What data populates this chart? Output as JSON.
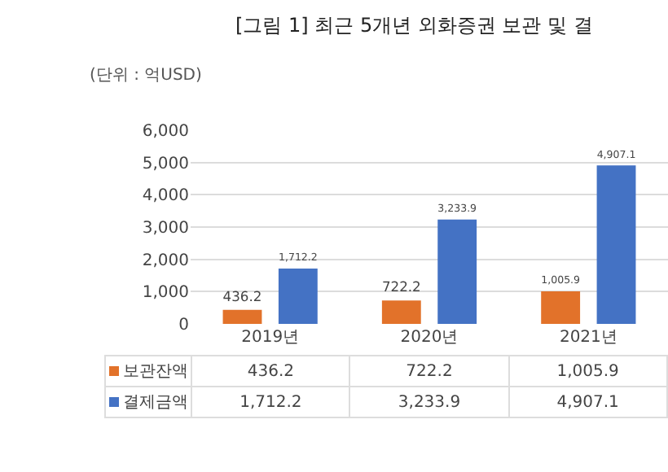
{
  "chart_data": {
    "type": "bar",
    "title": "[그림 1] 최근 5개년 외화증권 보관 및 결",
    "ylabel": "(단위 : 억USD)",
    "categories": [
      "2019년",
      "2020년",
      "2021년"
    ],
    "series": [
      {
        "name": "보관잔액",
        "color": "#e2722a",
        "values": [
          436.2,
          722.2,
          1005.9
        ],
        "value_labels": [
          "436.2",
          "722.2",
          "1,005.9"
        ]
      },
      {
        "name": "결제금액",
        "color": "#4472c4",
        "values": [
          1712.2,
          3233.9,
          4907.1
        ],
        "value_labels": [
          "1,712.2",
          "3,233.9",
          "4,907.1"
        ]
      }
    ],
    "ylim": [
      0,
      6000
    ],
    "yticks": [
      {
        "value": 0,
        "label": "0"
      },
      {
        "value": 1000,
        "label": "1,000"
      },
      {
        "value": 2000,
        "label": "2,000"
      },
      {
        "value": 3000,
        "label": "3,000"
      },
      {
        "value": 4000,
        "label": "4,000"
      },
      {
        "value": 5000,
        "label": "5,000"
      },
      {
        "value": 6000,
        "label": "6,000"
      }
    ],
    "grid": "y",
    "legend": "bottom"
  }
}
